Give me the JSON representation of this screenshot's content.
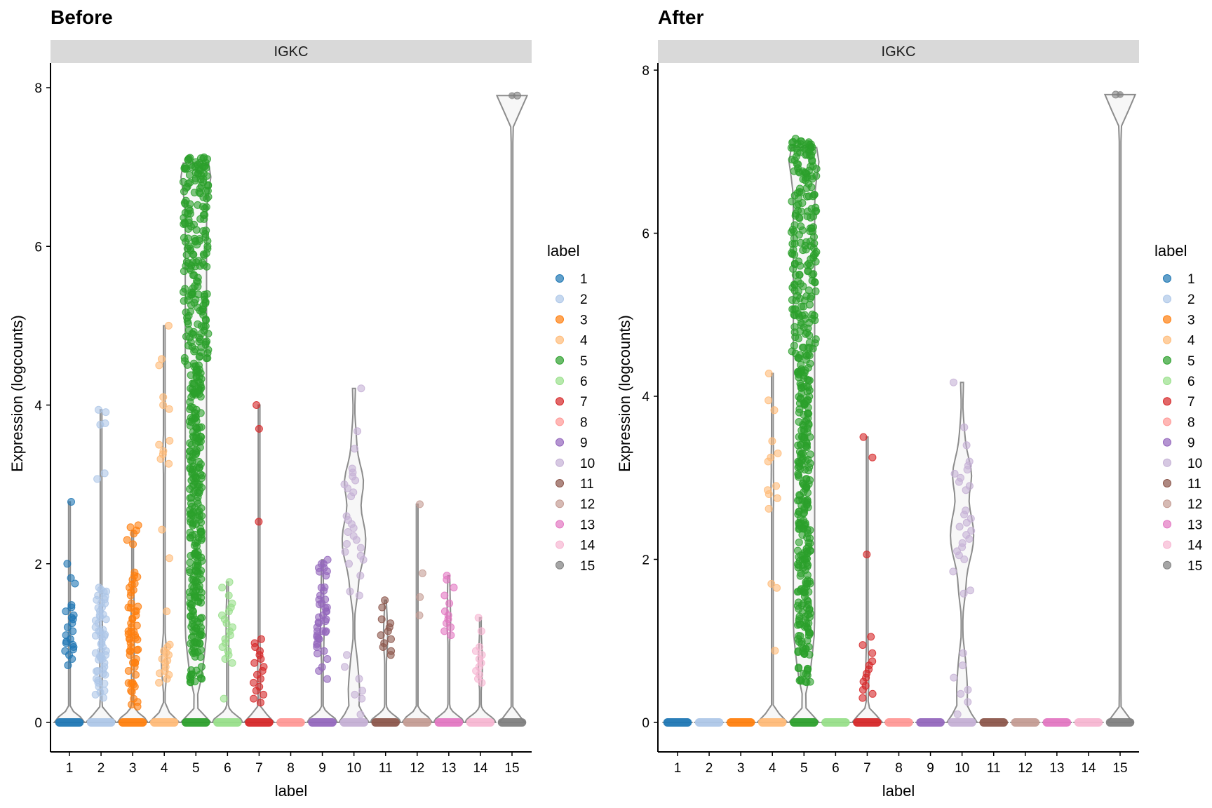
{
  "chart_data": [
    {
      "type": "violin",
      "title": "Before",
      "facet_label": "IGKC",
      "xlabel": "label",
      "ylabel": "Expression (logcounts)",
      "ylim": [
        -0.3,
        8.3
      ],
      "yticks": [
        0,
        2,
        4,
        6,
        8
      ],
      "categories": [
        "1",
        "2",
        "3",
        "4",
        "5",
        "6",
        "7",
        "8",
        "9",
        "10",
        "11",
        "12",
        "13",
        "14",
        "15"
      ],
      "grid": false,
      "legend": {
        "title": "label",
        "position": "right"
      },
      "series": [
        {
          "name": "1",
          "max": 2.78,
          "zero_fraction": 0.9,
          "nonzero_values": [
            2.78,
            2.0,
            1.82,
            1.75,
            1.48,
            1.45,
            1.4,
            1.35,
            1.32,
            1.3,
            1.25,
            1.2,
            1.15,
            1.1,
            1.05,
            1.02,
            1.0,
            0.98,
            0.95,
            0.92,
            0.9,
            0.85,
            0.8,
            0.72
          ]
        },
        {
          "name": "2",
          "max": 3.94,
          "zero_fraction": 0.8,
          "nonzero_values": [
            3.94,
            3.77,
            3.14,
            1.7,
            1.65,
            1.6,
            1.55,
            1.5,
            1.45,
            1.4,
            1.35,
            1.3,
            1.25,
            1.2,
            1.15,
            1.1,
            1.05,
            1.0,
            0.95,
            0.9,
            0.85,
            0.8,
            0.75,
            0.7,
            0.65,
            0.6,
            0.55,
            0.5,
            0.45,
            0.4,
            0.35
          ]
        },
        {
          "name": "3",
          "max": 2.42,
          "zero_fraction": 0.75,
          "nonzero_values": [
            2.42,
            2.38,
            2.3,
            1.85,
            1.8,
            1.75,
            1.7,
            1.6,
            1.5,
            1.45,
            1.4,
            1.35,
            1.3,
            1.25,
            1.2,
            1.15,
            1.1,
            1.05,
            1.0,
            0.95,
            0.9,
            0.85,
            0.8,
            0.75,
            0.7,
            0.6,
            0.5,
            0.45,
            0.4,
            0.3,
            0.2
          ]
        },
        {
          "name": "4",
          "max": 5.0,
          "zero_fraction": 0.7,
          "nonzero_values": [
            5.0,
            4.58,
            4.5,
            4.1,
            4.0,
            3.95,
            3.55,
            3.5,
            3.42,
            3.38,
            3.32,
            3.26,
            2.43,
            2.07,
            1.4,
            0.98,
            0.95,
            0.9,
            0.88,
            0.85,
            0.8,
            0.78,
            0.75,
            0.7,
            0.65,
            0.62,
            0.6,
            0.55,
            0.5
          ]
        },
        {
          "name": "5",
          "max": 7.05,
          "zero_fraction": 0.1,
          "nonzero_values": [
            7.05,
            7.0,
            6.85,
            6.7,
            6.5,
            6.3,
            6.1,
            5.9,
            5.7,
            5.5,
            5.3,
            5.1,
            4.9,
            4.7,
            4.5,
            4.3,
            4.1,
            3.9,
            3.7,
            3.5,
            3.3,
            3.1,
            2.9,
            2.7,
            2.5,
            2.3,
            2.1,
            1.9,
            1.7,
            1.5,
            1.3,
            1.1,
            0.9,
            0.6
          ]
        },
        {
          "name": "6",
          "max": 1.77,
          "zero_fraction": 0.85,
          "nonzero_values": [
            1.77,
            1.7,
            1.6,
            1.5,
            1.45,
            1.4,
            1.35,
            1.3,
            1.25,
            1.2,
            1.15,
            1.1,
            1.05,
            1.0,
            0.95,
            0.9,
            0.85,
            0.8,
            0.75,
            0.3
          ]
        },
        {
          "name": "7",
          "max": 4.0,
          "zero_fraction": 0.85,
          "nonzero_values": [
            4.0,
            3.7,
            2.53,
            1.05,
            1.0,
            0.95,
            0.9,
            0.85,
            0.8,
            0.75,
            0.7,
            0.65,
            0.6,
            0.55,
            0.5,
            0.45,
            0.4,
            0.35,
            0.3,
            0.25
          ]
        },
        {
          "name": "8",
          "max": 0.0,
          "zero_fraction": 1.0,
          "nonzero_values": []
        },
        {
          "name": "9",
          "max": 2.05,
          "zero_fraction": 0.8,
          "nonzero_values": [
            2.05,
            2.0,
            1.9,
            1.85,
            1.7,
            1.6,
            1.55,
            1.5,
            1.45,
            1.4,
            1.35,
            1.3,
            1.25,
            1.2,
            1.15,
            1.1,
            1.05,
            1.0,
            0.95,
            0.9,
            0.8,
            0.65
          ]
        },
        {
          "name": "10",
          "max": 4.21,
          "zero_fraction": 0.25,
          "nonzero_values": [
            4.21,
            3.67,
            3.45,
            3.2,
            3.15,
            3.1,
            3.05,
            3.0,
            2.95,
            2.9,
            2.85,
            2.6,
            2.55,
            2.5,
            2.45,
            2.4,
            2.35,
            2.3,
            2.25,
            2.2,
            2.15,
            2.1,
            2.05,
            2.0,
            1.85,
            1.65,
            1.6,
            0.85,
            0.7,
            0.55,
            0.4,
            0.35,
            0.3,
            0.1
          ]
        },
        {
          "name": "11",
          "max": 1.54,
          "zero_fraction": 0.85,
          "nonzero_values": [
            1.54,
            1.45,
            1.3,
            1.25,
            1.2,
            1.15,
            1.1,
            1.05,
            1.0,
            0.95,
            0.9,
            0.85
          ]
        },
        {
          "name": "12",
          "max": 2.75,
          "zero_fraction": 0.9,
          "nonzero_values": [
            2.75,
            1.88,
            1.58,
            1.35
          ]
        },
        {
          "name": "13",
          "max": 1.85,
          "zero_fraction": 0.85,
          "nonzero_values": [
            1.85,
            1.8,
            1.7,
            1.6,
            1.5,
            1.4,
            1.35,
            1.3,
            1.25,
            1.2,
            1.15,
            1.1
          ]
        },
        {
          "name": "14",
          "max": 1.32,
          "zero_fraction": 0.85,
          "nonzero_values": [
            1.32,
            1.15,
            0.95,
            0.9,
            0.85,
            0.8,
            0.75,
            0.7,
            0.65,
            0.6,
            0.55,
            0.5
          ]
        },
        {
          "name": "15",
          "max": 7.9,
          "zero_fraction": 0.5,
          "nonzero_values": [
            7.9
          ]
        }
      ]
    },
    {
      "type": "violin",
      "title": "After",
      "facet_label": "IGKC",
      "xlabel": "label",
      "ylabel": "Expression (logcounts)",
      "ylim": [
        -0.3,
        8.1
      ],
      "yticks": [
        0,
        2,
        4,
        6,
        8
      ],
      "categories": [
        "1",
        "2",
        "3",
        "4",
        "5",
        "6",
        "7",
        "8",
        "9",
        "10",
        "11",
        "12",
        "13",
        "14",
        "15"
      ],
      "grid": false,
      "legend": {
        "title": "label",
        "position": "right"
      },
      "series": [
        {
          "name": "1",
          "max": 0.0,
          "zero_fraction": 1.0,
          "nonzero_values": []
        },
        {
          "name": "2",
          "max": 0.0,
          "zero_fraction": 1.0,
          "nonzero_values": []
        },
        {
          "name": "3",
          "max": 0.0,
          "zero_fraction": 1.0,
          "nonzero_values": []
        },
        {
          "name": "4",
          "max": 4.28,
          "zero_fraction": 0.8,
          "nonzero_values": [
            4.28,
            3.95,
            3.83,
            3.45,
            3.3,
            3.25,
            3.2,
            2.9,
            2.85,
            2.8,
            2.75,
            2.62,
            1.7,
            1.65,
            0.88
          ]
        },
        {
          "name": "5",
          "max": 7.05,
          "zero_fraction": 0.1,
          "nonzero_values": [
            7.05,
            7.0,
            6.85,
            6.7,
            6.5,
            6.3,
            6.1,
            5.9,
            5.7,
            5.5,
            5.3,
            5.1,
            4.9,
            4.7,
            4.5,
            4.3,
            4.1,
            3.9,
            3.7,
            3.5,
            3.3,
            3.1,
            2.9,
            2.7,
            2.5,
            2.3,
            2.1,
            1.9,
            1.7,
            1.5,
            1.3,
            1.1,
            0.9,
            0.6
          ]
        },
        {
          "name": "6",
          "max": 0.0,
          "zero_fraction": 1.0,
          "nonzero_values": []
        },
        {
          "name": "7",
          "max": 3.5,
          "zero_fraction": 0.85,
          "nonzero_values": [
            3.5,
            3.25,
            2.06,
            1.05,
            0.95,
            0.85,
            0.75,
            0.7,
            0.65,
            0.6,
            0.55,
            0.5,
            0.45,
            0.4,
            0.35,
            0.3
          ]
        },
        {
          "name": "8",
          "max": 0.0,
          "zero_fraction": 1.0,
          "nonzero_values": []
        },
        {
          "name": "9",
          "max": 0.0,
          "zero_fraction": 1.0,
          "nonzero_values": []
        },
        {
          "name": "10",
          "max": 4.17,
          "zero_fraction": 0.25,
          "nonzero_values": [
            4.17,
            3.62,
            3.4,
            3.2,
            3.15,
            3.1,
            3.05,
            3.0,
            2.95,
            2.9,
            2.85,
            2.6,
            2.55,
            2.5,
            2.45,
            2.4,
            2.35,
            2.3,
            2.25,
            2.2,
            2.15,
            2.1,
            2.05,
            2.0,
            1.85,
            1.62,
            1.58,
            0.85,
            0.7,
            0.55,
            0.4,
            0.35,
            0.25,
            0.1
          ]
        },
        {
          "name": "11",
          "max": 0.0,
          "zero_fraction": 1.0,
          "nonzero_values": []
        },
        {
          "name": "12",
          "max": 0.0,
          "zero_fraction": 1.0,
          "nonzero_values": []
        },
        {
          "name": "13",
          "max": 0.0,
          "zero_fraction": 1.0,
          "nonzero_values": []
        },
        {
          "name": "14",
          "max": 0.0,
          "zero_fraction": 1.0,
          "nonzero_values": []
        },
        {
          "name": "15",
          "max": 7.7,
          "zero_fraction": 0.5,
          "nonzero_values": [
            7.7
          ]
        }
      ]
    }
  ],
  "palette": {
    "1": "#1f77b4",
    "2": "#aec7e8",
    "3": "#ff7f0e",
    "4": "#ffbb78",
    "5": "#2ca02c",
    "6": "#98df8a",
    "7": "#d62728",
    "8": "#ff9896",
    "9": "#9467bd",
    "10": "#c5b0d5",
    "11": "#8c564b",
    "12": "#c49c94",
    "13": "#e377c2",
    "14": "#f7b6d2",
    "15": "#7f7f7f"
  },
  "strip_color": "#d9d9d9",
  "violin_stroke": "#8c8c8c"
}
